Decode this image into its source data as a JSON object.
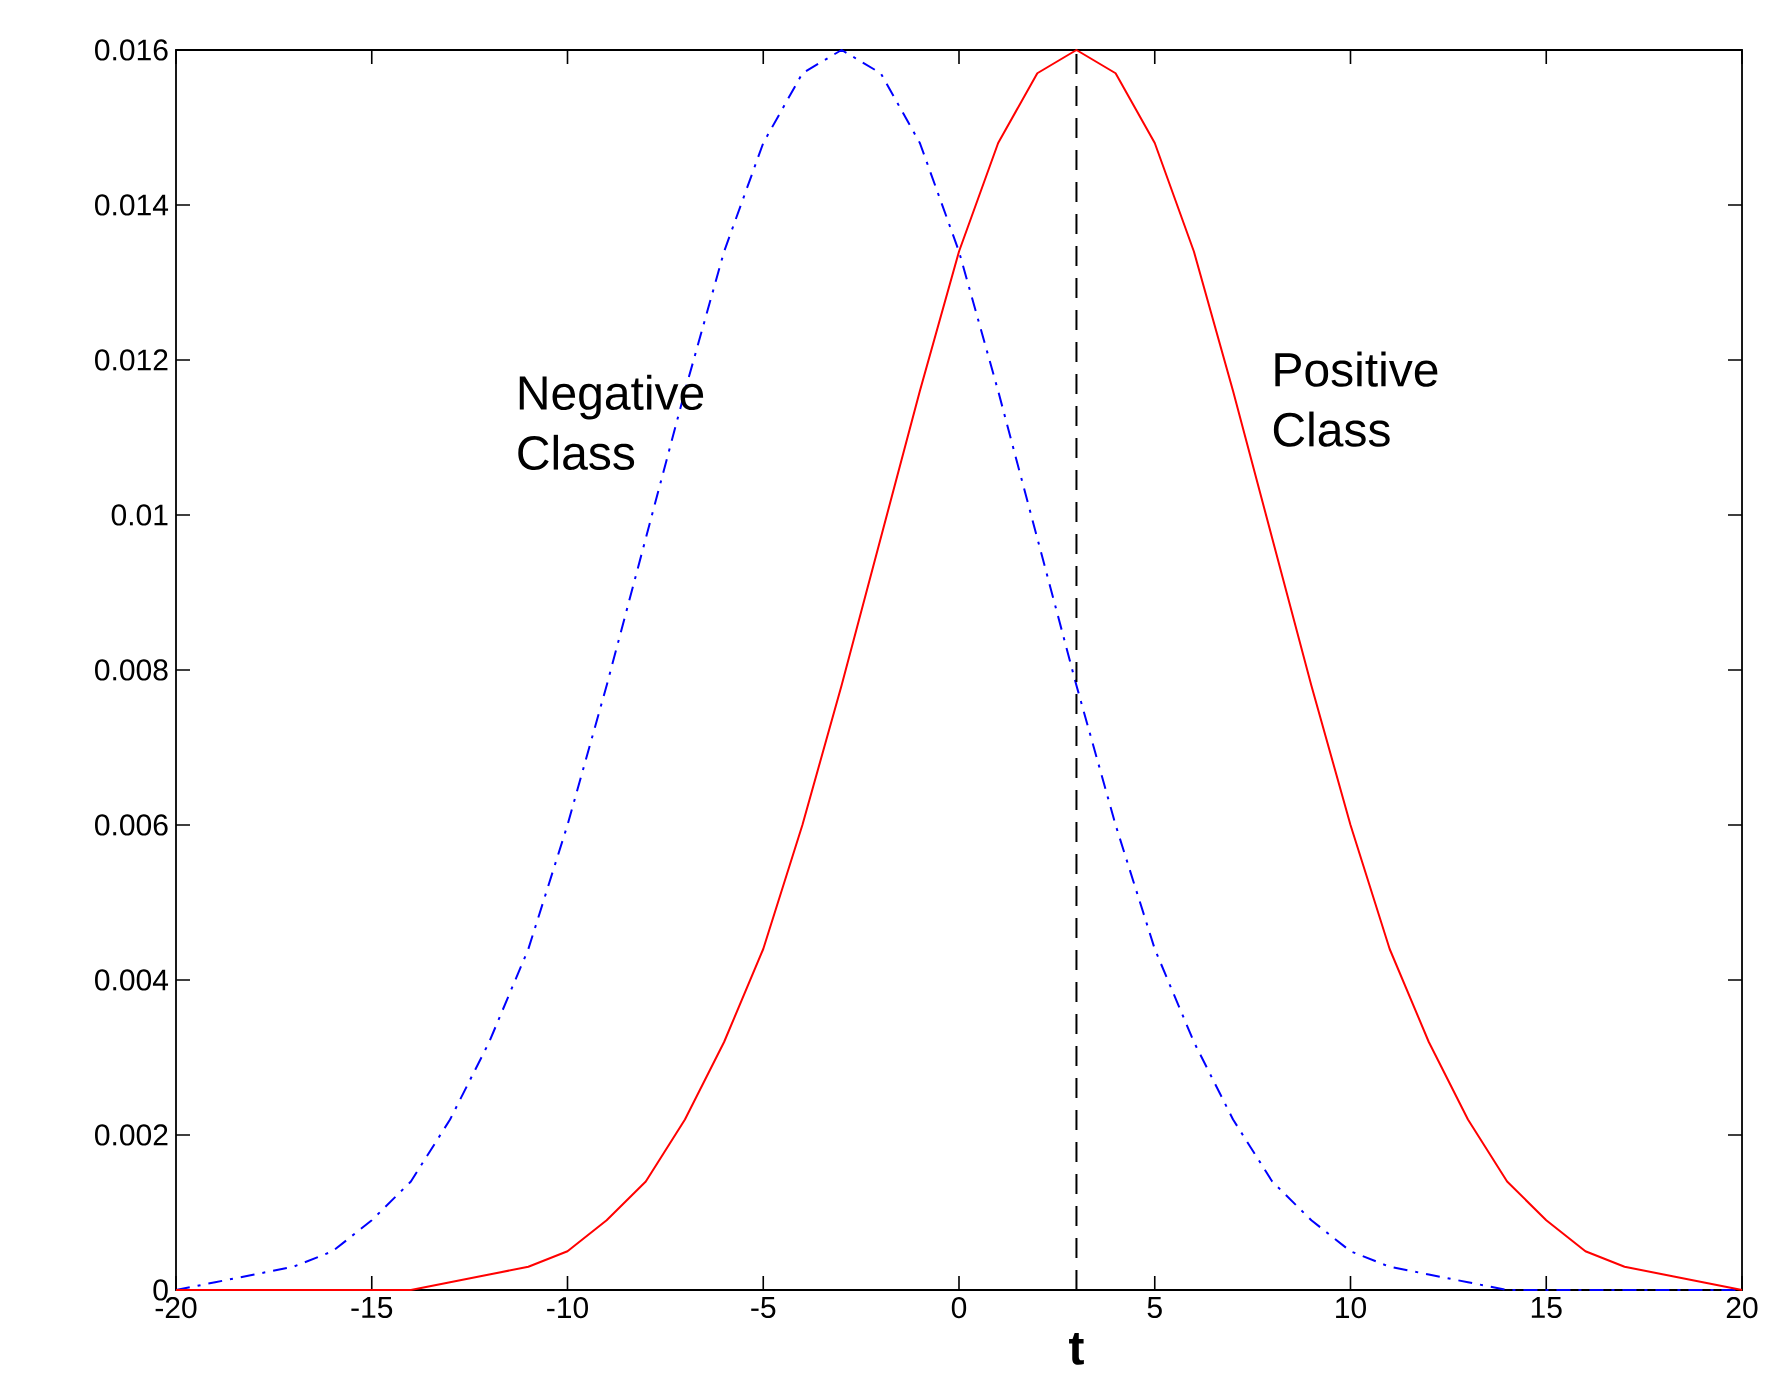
{
  "chart_data": {
    "type": "line",
    "x": [
      -20,
      -19,
      -18,
      -17,
      -16,
      -15,
      -14,
      -13,
      -12,
      -11,
      -10,
      -9,
      -8,
      -7,
      -6,
      -5,
      -4,
      -3,
      -2,
      -1,
      0,
      1,
      2,
      3,
      4,
      5,
      6,
      7,
      8,
      9,
      10,
      11,
      12,
      13,
      14,
      15,
      16,
      17,
      18,
      19,
      20
    ],
    "series": [
      {
        "name": "Negative Class",
        "color": "#0000ff",
        "line_style": "dashdot",
        "values": [
          0,
          0.0001,
          0.0002,
          0.0003,
          0.0005,
          0.0009,
          0.0014,
          0.0022,
          0.0032,
          0.0044,
          0.006,
          0.0078,
          0.0097,
          0.0116,
          0.0134,
          0.0148,
          0.0157,
          0.016,
          0.0157,
          0.0148,
          0.0134,
          0.0116,
          0.0097,
          0.0078,
          0.006,
          0.0044,
          0.0032,
          0.0022,
          0.0014,
          0.0009,
          0.0005,
          0.0003,
          0.0002,
          0.0001,
          0,
          0,
          0,
          0,
          0,
          0,
          0
        ]
      },
      {
        "name": "Positive Class",
        "color": "#ff0000",
        "line_style": "solid",
        "values": [
          0,
          0,
          0,
          0,
          0,
          0,
          0,
          0.0001,
          0.0002,
          0.0003,
          0.0005,
          0.0009,
          0.0014,
          0.0022,
          0.0032,
          0.0044,
          0.006,
          0.0078,
          0.0097,
          0.0116,
          0.0134,
          0.0148,
          0.0157,
          0.016,
          0.0157,
          0.0148,
          0.0134,
          0.0116,
          0.0097,
          0.0078,
          0.006,
          0.0044,
          0.0032,
          0.0022,
          0.0014,
          0.0009,
          0.0005,
          0.0003,
          0.0002,
          0.0001,
          0
        ]
      }
    ],
    "xlim": [
      -20,
      20
    ],
    "ylim": [
      0,
      0.016
    ],
    "xticks": [
      -20,
      -15,
      -10,
      -5,
      0,
      5,
      10,
      15,
      20
    ],
    "yticks": [
      {
        "value": 0,
        "label": "0"
      },
      {
        "value": 0.002,
        "label": "0.002"
      },
      {
        "value": 0.004,
        "label": "0.004"
      },
      {
        "value": 0.006,
        "label": "0.006"
      },
      {
        "value": 0.008,
        "label": "0.008"
      },
      {
        "value": 0.01,
        "label": "0.01"
      },
      {
        "value": 0.012,
        "label": "0.012"
      },
      {
        "value": 0.014,
        "label": "0.014"
      },
      {
        "value": 0.016,
        "label": "0.016"
      }
    ],
    "ref_lines": [
      {
        "axis": "x",
        "value": 3,
        "label": "t",
        "color": "#000000",
        "line_style": "dashed"
      }
    ],
    "grid": false,
    "legend": false,
    "marker": "none"
  }
}
